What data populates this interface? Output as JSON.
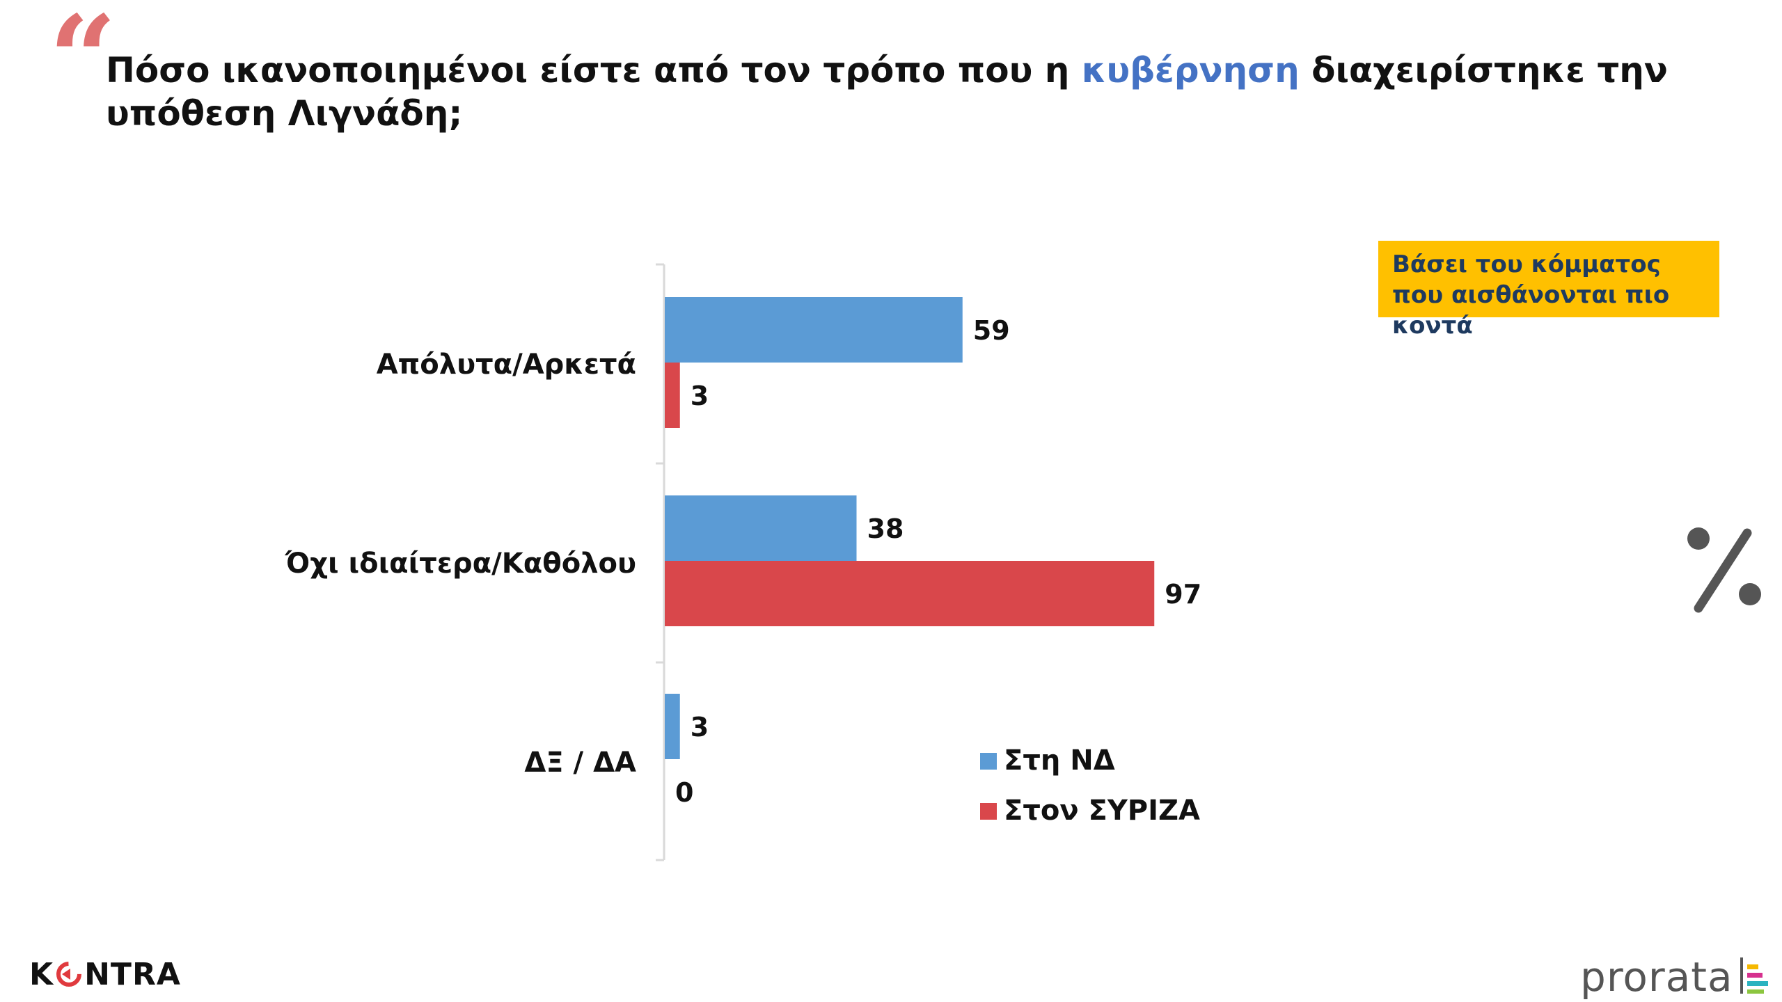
{
  "quote_mark": "“",
  "question": {
    "part1": "Πόσο ικανοποιημένοι είστε από τον τρόπο που η ",
    "highlight": "κυβέρνηση",
    "part2": " διαχειρίστηκε την υπόθεση Λιγνάδη;"
  },
  "note": "Βάσει του κόμματος που αισθάνονται πιο κοντά",
  "percent_symbol": "%",
  "logos": {
    "kontra_text": "KONTRA",
    "prorata_text": "prorata"
  },
  "colors": {
    "nd": "#5b9bd5",
    "syriza": "#d9474b",
    "highlight": "#4472c4",
    "note_bg": "#ffc000",
    "quote": "#e07272"
  },
  "chart_data": {
    "type": "bar",
    "orientation": "horizontal",
    "categories": [
      "Απόλυτα/Αρκετά",
      "Όχι ιδιαίτερα/Καθόλου",
      "ΔΞ / ΔΑ"
    ],
    "series": [
      {
        "name": "Στη ΝΔ",
        "color": "#5b9bd5",
        "values": [
          59,
          38,
          3
        ]
      },
      {
        "name": "Στον ΣΥΡΙΖΑ",
        "color": "#d9474b",
        "values": [
          3,
          97,
          0
        ]
      }
    ],
    "xlim": [
      0,
      100
    ],
    "unit": "%",
    "grid": false,
    "data_labels": true,
    "legend_position": "bottom-right inside plot"
  }
}
